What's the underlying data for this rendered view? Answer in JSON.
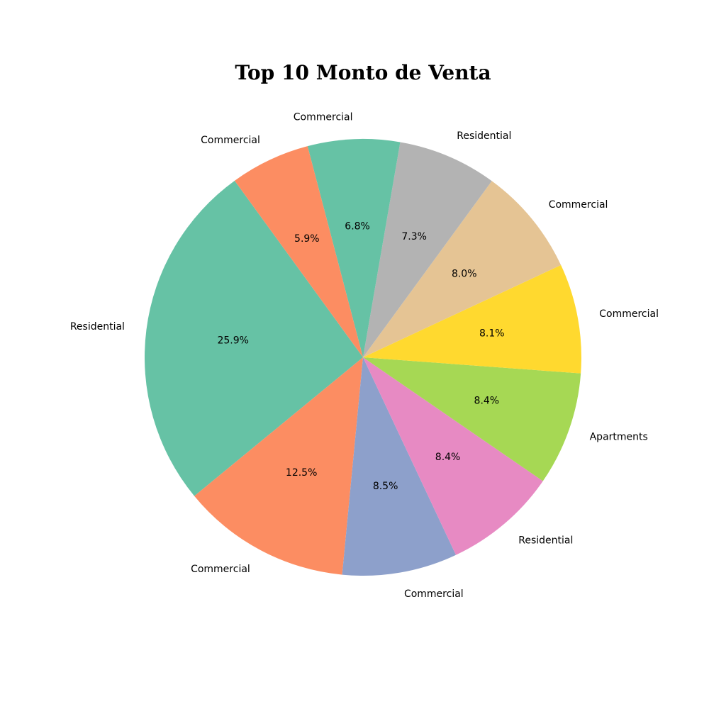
{
  "chart_data": {
    "type": "pie",
    "title": "Top 10 Monto de Venta",
    "start_angle_deg": 126,
    "direction": "counterclockwise",
    "autopct_format": "%.1f%%",
    "slices": [
      {
        "label": "Residential",
        "value": 25.9,
        "pct_label": "25.9%",
        "color": "#66c2a5"
      },
      {
        "label": "Commercial",
        "value": 12.5,
        "pct_label": "12.5%",
        "color": "#fc8d62"
      },
      {
        "label": "Commercial",
        "value": 8.5,
        "pct_label": "8.5%",
        "color": "#8da0cb"
      },
      {
        "label": "Residential",
        "value": 8.4,
        "pct_label": "8.4%",
        "color": "#e78ac3"
      },
      {
        "label": "Apartments",
        "value": 8.4,
        "pct_label": "8.4%",
        "color": "#a6d854"
      },
      {
        "label": "Commercial",
        "value": 8.1,
        "pct_label": "8.1%",
        "color": "#ffd92f"
      },
      {
        "label": "Commercial",
        "value": 8.0,
        "pct_label": "8.0%",
        "color": "#e5c494"
      },
      {
        "label": "Residential",
        "value": 7.3,
        "pct_label": "7.3%",
        "color": "#b3b3b3"
      },
      {
        "label": "Commercial",
        "value": 6.8,
        "pct_label": "6.8%",
        "color": "#66c2a5"
      },
      {
        "label": "Commercial",
        "value": 5.9,
        "pct_label": "5.9%",
        "color": "#fc8d62"
      }
    ]
  }
}
